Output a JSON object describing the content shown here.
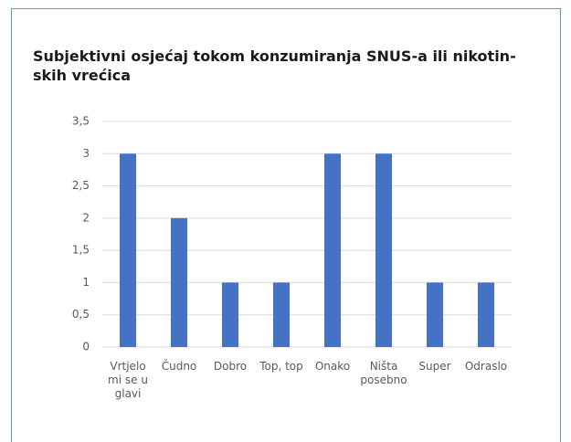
{
  "chart_data": {
    "type": "bar",
    "title": [
      "Subjektivni osjećaj tokom konzumiranja SNUS-a ili nikotin-",
      "skih vrećica"
    ],
    "categories": [
      "Vrtjelo mi se u glavi",
      "Čudno",
      "Dobro",
      "Top, top",
      "Onako",
      "Ništa posebno",
      "Super",
      "Odraslo"
    ],
    "values": [
      3,
      2,
      1,
      1,
      3,
      3,
      1,
      1
    ],
    "color": "#4472c4",
    "ylim": [
      0,
      3.5
    ],
    "yticks": [
      0,
      {
        "value": 0.5,
        "label": "0,5"
      },
      1,
      {
        "value": 1.5,
        "label": "1,5"
      },
      2,
      {
        "value": 2.5,
        "label": "2,5"
      },
      3,
      {
        "value": 3.5,
        "label": "3,5"
      }
    ],
    "grid": true
  }
}
